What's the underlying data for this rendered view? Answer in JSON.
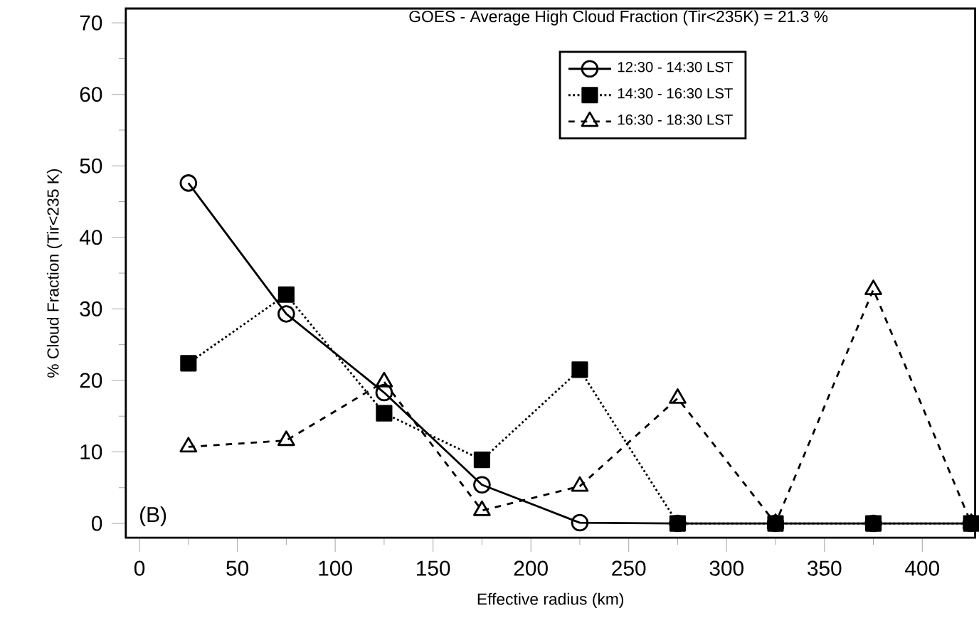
{
  "chart_data": {
    "type": "line",
    "title": "GOES - Average High Cloud Fraction (Tir<235K) = 21.3 %",
    "xlabel": "Effective radius (km)",
    "ylabel": "% Cloud Fraction (Tir<235 K)",
    "x": [
      25,
      75,
      125,
      175,
      225,
      275,
      325,
      375,
      425
    ],
    "series": [
      {
        "name": "12:30 - 14:30 LST",
        "color": "#000000",
        "marker": "circle",
        "line_style": "solid",
        "values": [
          47.6,
          29.3,
          18.3,
          5.4,
          0.1,
          0,
          0,
          0,
          0
        ]
      },
      {
        "name": "14:30 - 16:30 LST",
        "color": "#000000",
        "marker": "square",
        "line_style": "dotted",
        "values": [
          22.4,
          32,
          15.4,
          8.9,
          21.5,
          0,
          0,
          0,
          0
        ]
      },
      {
        "name": "16:30 - 18:30 LST",
        "color": "#000000",
        "marker": "triangle",
        "line_style": "dashed",
        "values": [
          10.7,
          11.6,
          19.8,
          1.8,
          5.2,
          17.5,
          0,
          32.7,
          0
        ]
      }
    ],
    "xlim": [
      -7,
      427
    ],
    "ylim": [
      -2,
      72
    ],
    "xticks": [
      0,
      50,
      100,
      150,
      200,
      250,
      300,
      350,
      400
    ],
    "yticks": [
      0,
      10,
      20,
      30,
      40,
      50,
      60,
      70
    ],
    "legend": "top right",
    "grid": false,
    "annotations": [
      "(B)"
    ]
  }
}
